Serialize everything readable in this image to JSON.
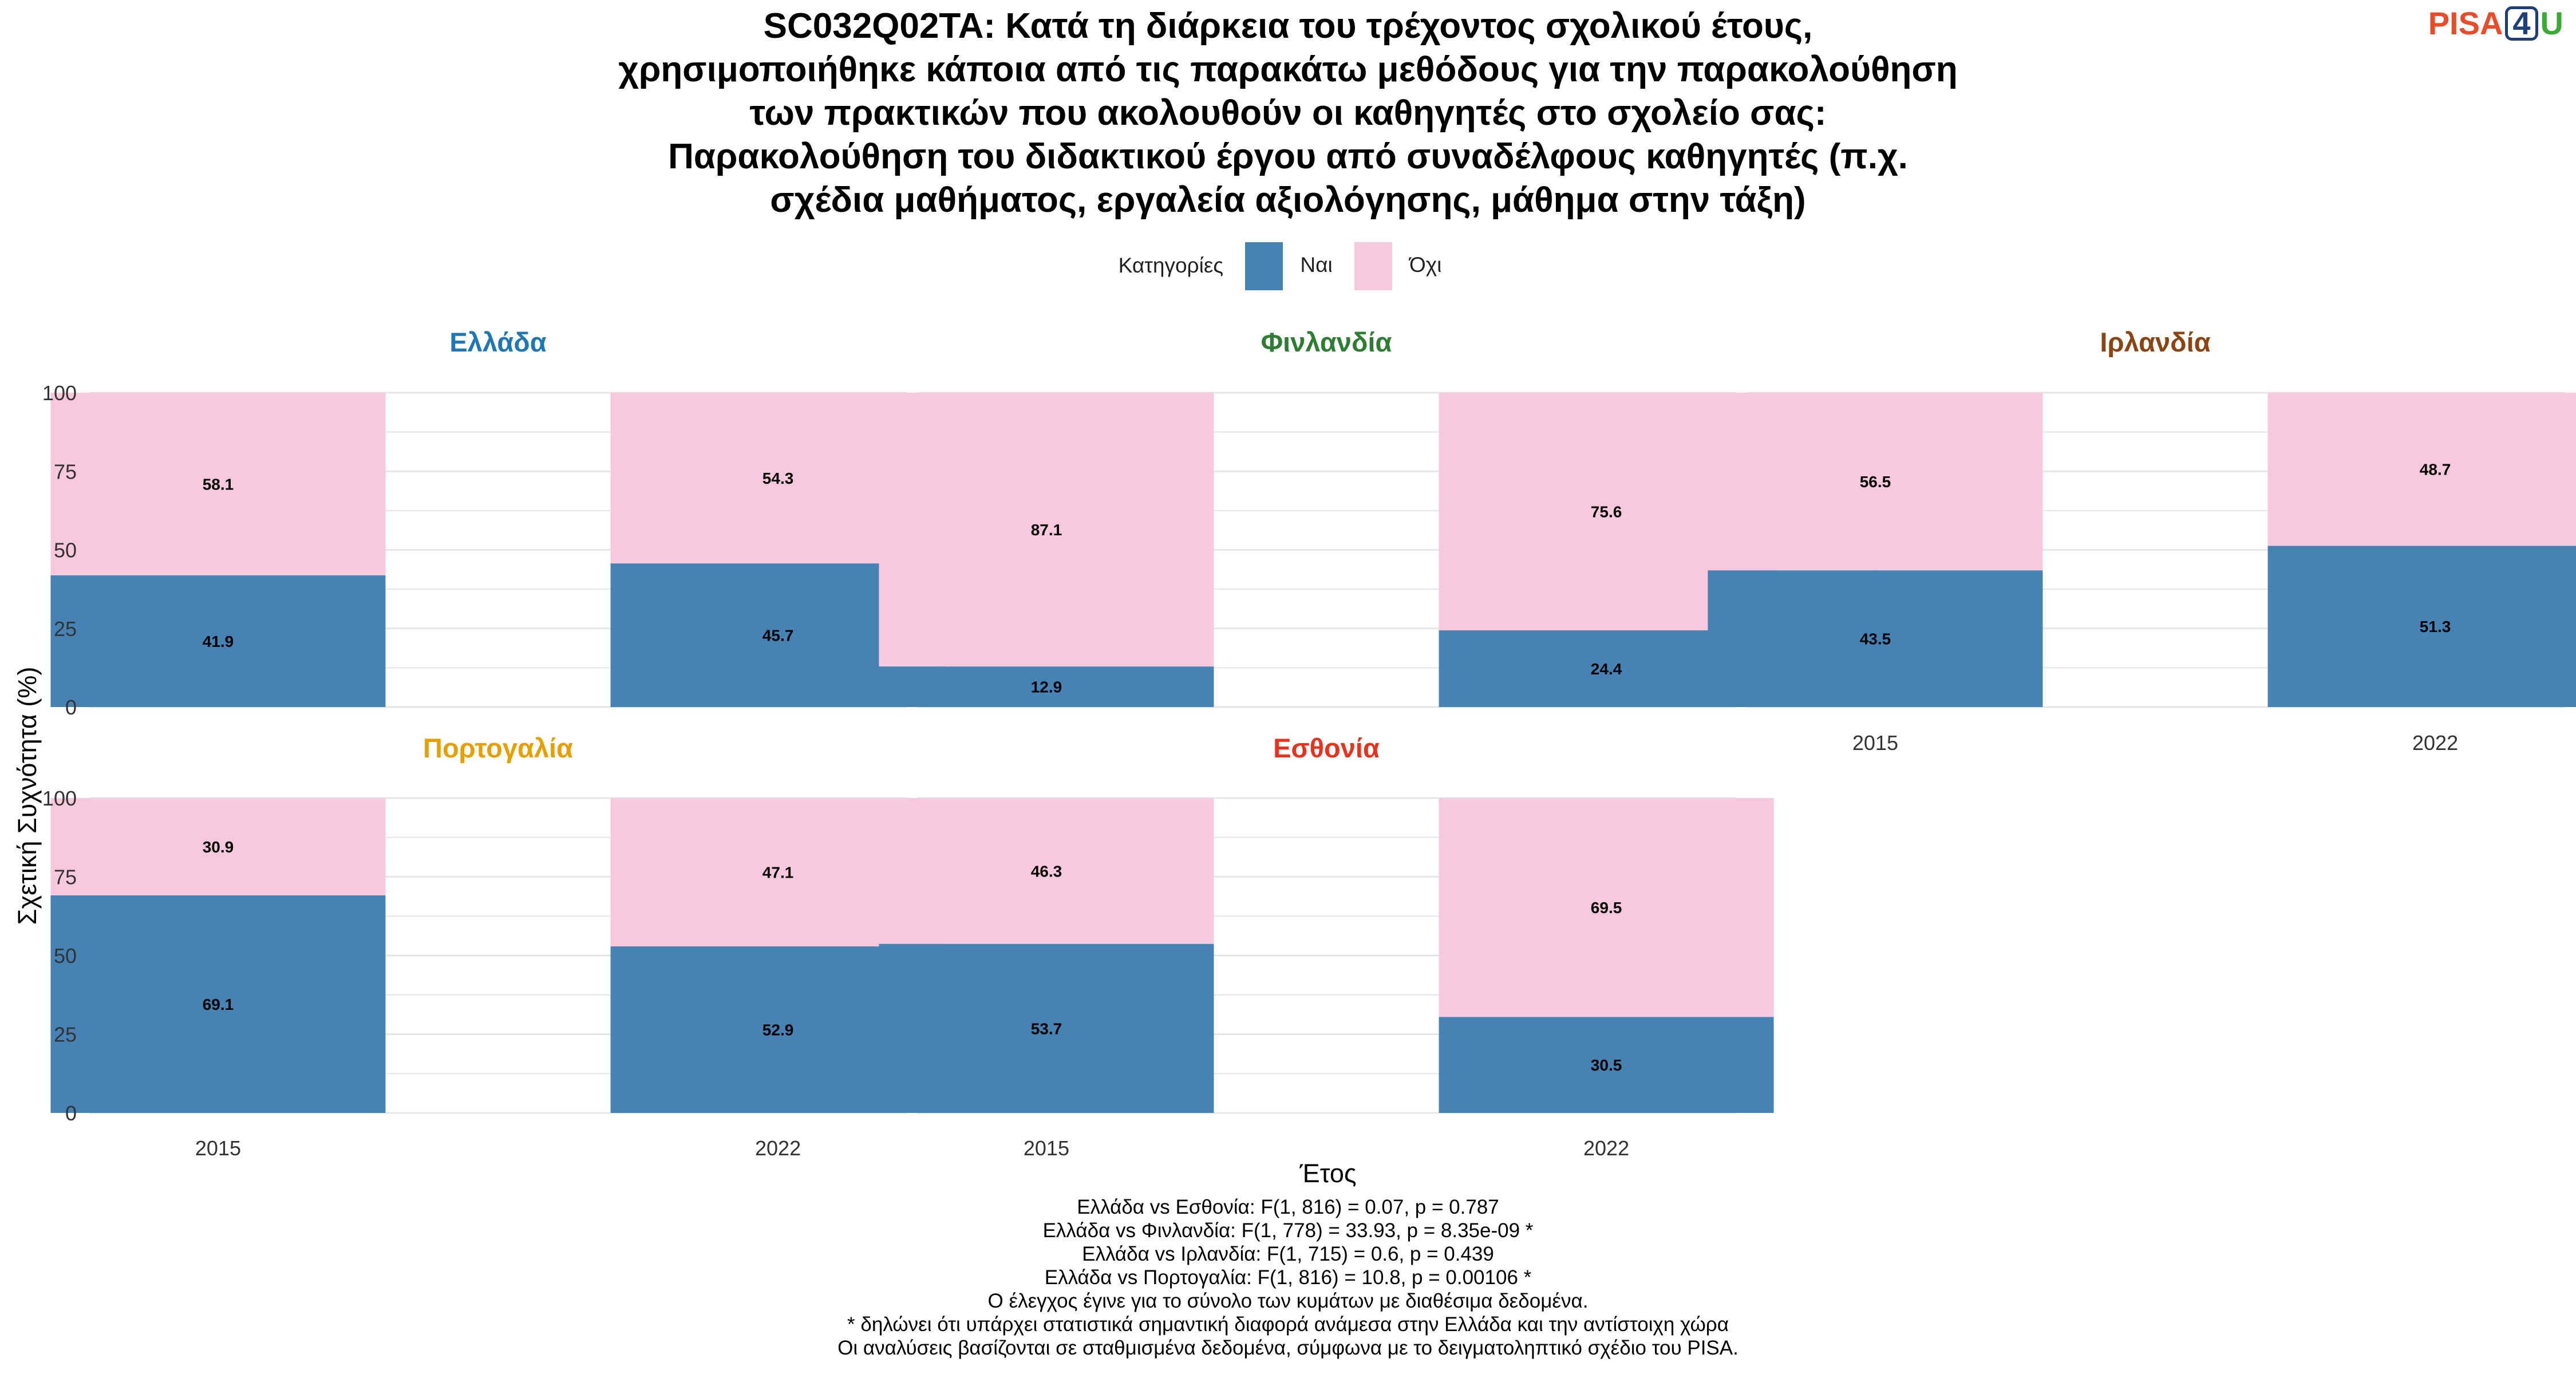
{
  "title_lines": [
    "SC032Q02TA: Κατά τη διάρκεια του τρέχοντος σχολικού έτους,",
    "χρησιμοποιήθηκε κάποια από τις παρακάτω μεθόδους για την παρακολούθηση",
    "των πρακτικών που ακολουθούν οι καθηγητές στο σχολείο σας:",
    "Παρακολούθηση του διδακτικού έργου από συναδέλφους καθηγητές (π.χ.",
    "σχέδια μαθήματος, εργαλεία αξιολόγησης, μάθημα στην τάξη)"
  ],
  "logo": {
    "part1": "PISA",
    "part2": "4",
    "part3": "U"
  },
  "legend": {
    "title": "Κατηγορίες",
    "items": [
      {
        "label": "Ναι",
        "color": "#4682b4"
      },
      {
        "label": "Όχι",
        "color": "#f8c8dc"
      }
    ]
  },
  "colors": {
    "grid": "#e6e6e6",
    "text": "#333333",
    "yes": "#4682b4",
    "no": "#f8c8dc"
  },
  "chart_data": {
    "type": "bar",
    "stacked": true,
    "ylabel": "Σχετική Συχνότητα (%)",
    "xlabel": "Έτος",
    "ylim": [
      0,
      100
    ],
    "yticks": [
      0,
      25,
      50,
      75,
      100
    ],
    "categories": [
      "2015",
      "2022"
    ],
    "series_names": [
      "Ναι",
      "Όχι"
    ],
    "panels": [
      {
        "country": "Ελλάδα",
        "color": "#1f77b4",
        "yes": [
          41.9,
          45.7
        ],
        "no": [
          58.1,
          54.3
        ]
      },
      {
        "country": "Φινλανδία",
        "color": "#2e7d32",
        "yes": [
          12.9,
          24.4
        ],
        "no": [
          87.1,
          75.6
        ]
      },
      {
        "country": "Ιρλανδία",
        "color": "#8b4513",
        "yes": [
          43.5,
          51.3
        ],
        "no": [
          56.5,
          48.7
        ]
      },
      {
        "country": "Πορτογαλία",
        "color": "#e69f00",
        "yes": [
          69.1,
          52.9
        ],
        "no": [
          30.9,
          47.1
        ]
      },
      {
        "country": "Εσθονία",
        "color": "#e8321e",
        "yes": [
          53.7,
          30.5
        ],
        "no": [
          46.3,
          69.5
        ]
      }
    ]
  },
  "notes": [
    "Ελλάδα vs Εσθονία: F(1, 816) = 0.07, p = 0.787",
    "Ελλάδα vs Φινλανδία: F(1, 778) = 33.93, p = 8.35e-09 *",
    "Ελλάδα vs Ιρλανδία: F(1, 715) = 0.6, p = 0.439",
    "Ελλάδα vs Πορτογαλία: F(1, 816) = 10.8, p = 0.00106 *",
    "Ο έλεγχος έγινε για το σύνολο των κυμάτων με διαθέσιμα δεδομένα.",
    "* δηλώνει ότι υπάρχει στατιστικά σημαντική διαφορά ανάμεσα στην Ελλάδα και την αντίστοιχη χώρα",
    "Οι αναλύσεις βασίζονται σε σταθμισμένα δεδομένα, σύμφωνα με το δειγματοληπτικό σχέδιο του PISA."
  ]
}
